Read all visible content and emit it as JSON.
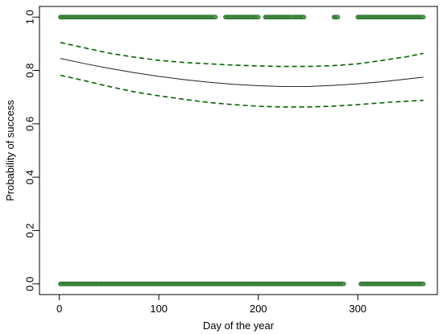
{
  "chart_data": {
    "type": "scatter",
    "title": "",
    "xlabel": "Day of the year",
    "ylabel": "Probability of success",
    "xlim": [
      -20,
      380
    ],
    "ylim": [
      -0.04,
      1.04
    ],
    "x_ticks": [
      0,
      100,
      200,
      300
    ],
    "x_tick_labels": [
      "0",
      "100",
      "200",
      "300"
    ],
    "y_ticks": [
      0.0,
      0.2,
      0.4,
      0.6,
      0.8,
      1.0
    ],
    "y_tick_labels": [
      "0.0",
      "0.2",
      "0.4",
      "0.6",
      "0.8",
      "1.0"
    ],
    "grid": false,
    "colors": {
      "points_fill": "#4f9a4f",
      "points_stroke": "#1f5f1f",
      "fit_line": "#222222",
      "ci_line": "#006400"
    },
    "points": {
      "success_y": 1,
      "failure_y": 0,
      "success_x_ranges": [
        [
          1,
          157
        ],
        [
          167,
          200
        ],
        [
          207,
          234
        ],
        [
          236,
          246
        ],
        [
          276,
          280
        ],
        [
          300,
          366
        ]
      ],
      "failure_x_ranges": [
        [
          1,
          286
        ],
        [
          303,
          366
        ]
      ]
    },
    "fit": {
      "x": [
        1,
        25,
        50,
        75,
        100,
        125,
        150,
        175,
        200,
        225,
        250,
        275,
        300,
        325,
        350,
        366
      ],
      "y": [
        0.845,
        0.826,
        0.808,
        0.792,
        0.778,
        0.766,
        0.756,
        0.748,
        0.743,
        0.74,
        0.74,
        0.744,
        0.75,
        0.758,
        0.768,
        0.775
      ]
    },
    "ci_upper": {
      "x": [
        1,
        25,
        50,
        75,
        100,
        125,
        150,
        175,
        200,
        225,
        250,
        275,
        300,
        325,
        350,
        366
      ],
      "y": [
        0.905,
        0.885,
        0.865,
        0.85,
        0.838,
        0.83,
        0.825,
        0.82,
        0.817,
        0.815,
        0.815,
        0.818,
        0.825,
        0.838,
        0.852,
        0.864
      ]
    },
    "ci_lower": {
      "x": [
        1,
        25,
        50,
        75,
        100,
        125,
        150,
        175,
        200,
        225,
        250,
        275,
        300,
        325,
        350,
        366
      ],
      "y": [
        0.782,
        0.762,
        0.74,
        0.72,
        0.705,
        0.692,
        0.68,
        0.672,
        0.666,
        0.663,
        0.663,
        0.666,
        0.672,
        0.679,
        0.685,
        0.688
      ]
    }
  }
}
